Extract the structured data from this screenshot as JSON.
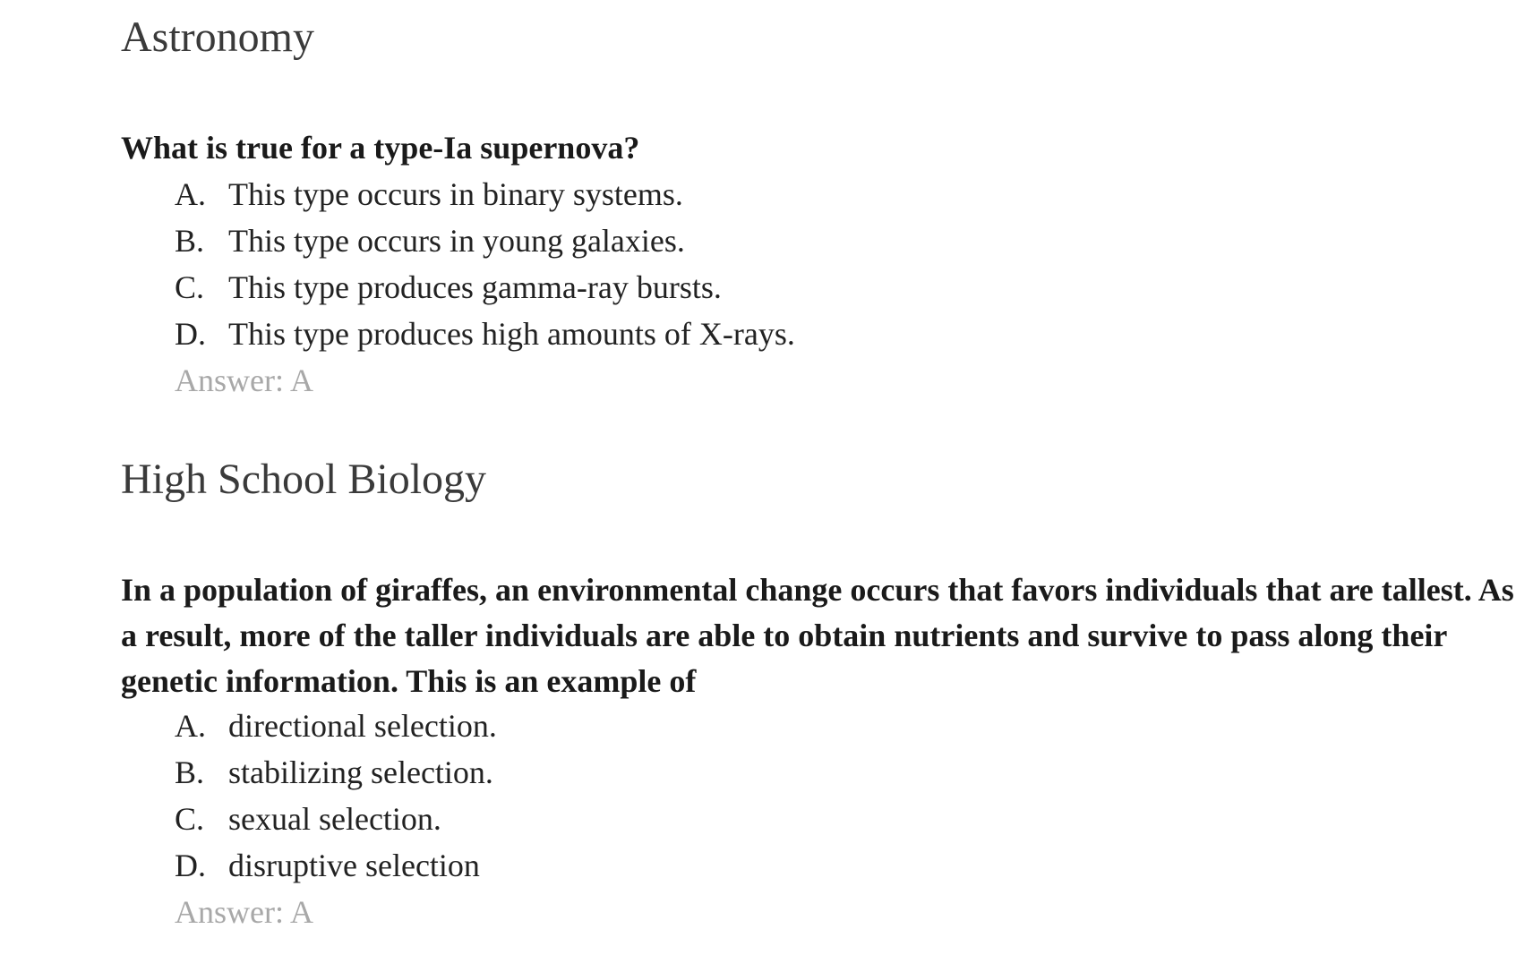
{
  "sections": [
    {
      "title": "Astronomy",
      "question": "What is true for a type-Ia supernova?",
      "options": [
        {
          "letter": "A.",
          "text": "This type occurs in binary systems."
        },
        {
          "letter": "B.",
          "text": "This type occurs in young galaxies."
        },
        {
          "letter": "C.",
          "text": "This type produces gamma-ray bursts."
        },
        {
          "letter": "D.",
          "text": "This type produces high amounts of X-rays."
        }
      ],
      "answer": "Answer: A"
    },
    {
      "title": "High School Biology",
      "question": "In a population of giraffes, an environmental change occurs that favors individuals that are tallest. As a result, more of the taller individuals are able to obtain nutrients and survive to pass along their genetic information. This is an example of",
      "options": [
        {
          "letter": "A.",
          "text": "directional selection."
        },
        {
          "letter": "B.",
          "text": "stabilizing selection."
        },
        {
          "letter": "C.",
          "text": "sexual selection."
        },
        {
          "letter": "D.",
          "text": "disruptive selection"
        }
      ],
      "answer": "Answer: A"
    }
  ]
}
